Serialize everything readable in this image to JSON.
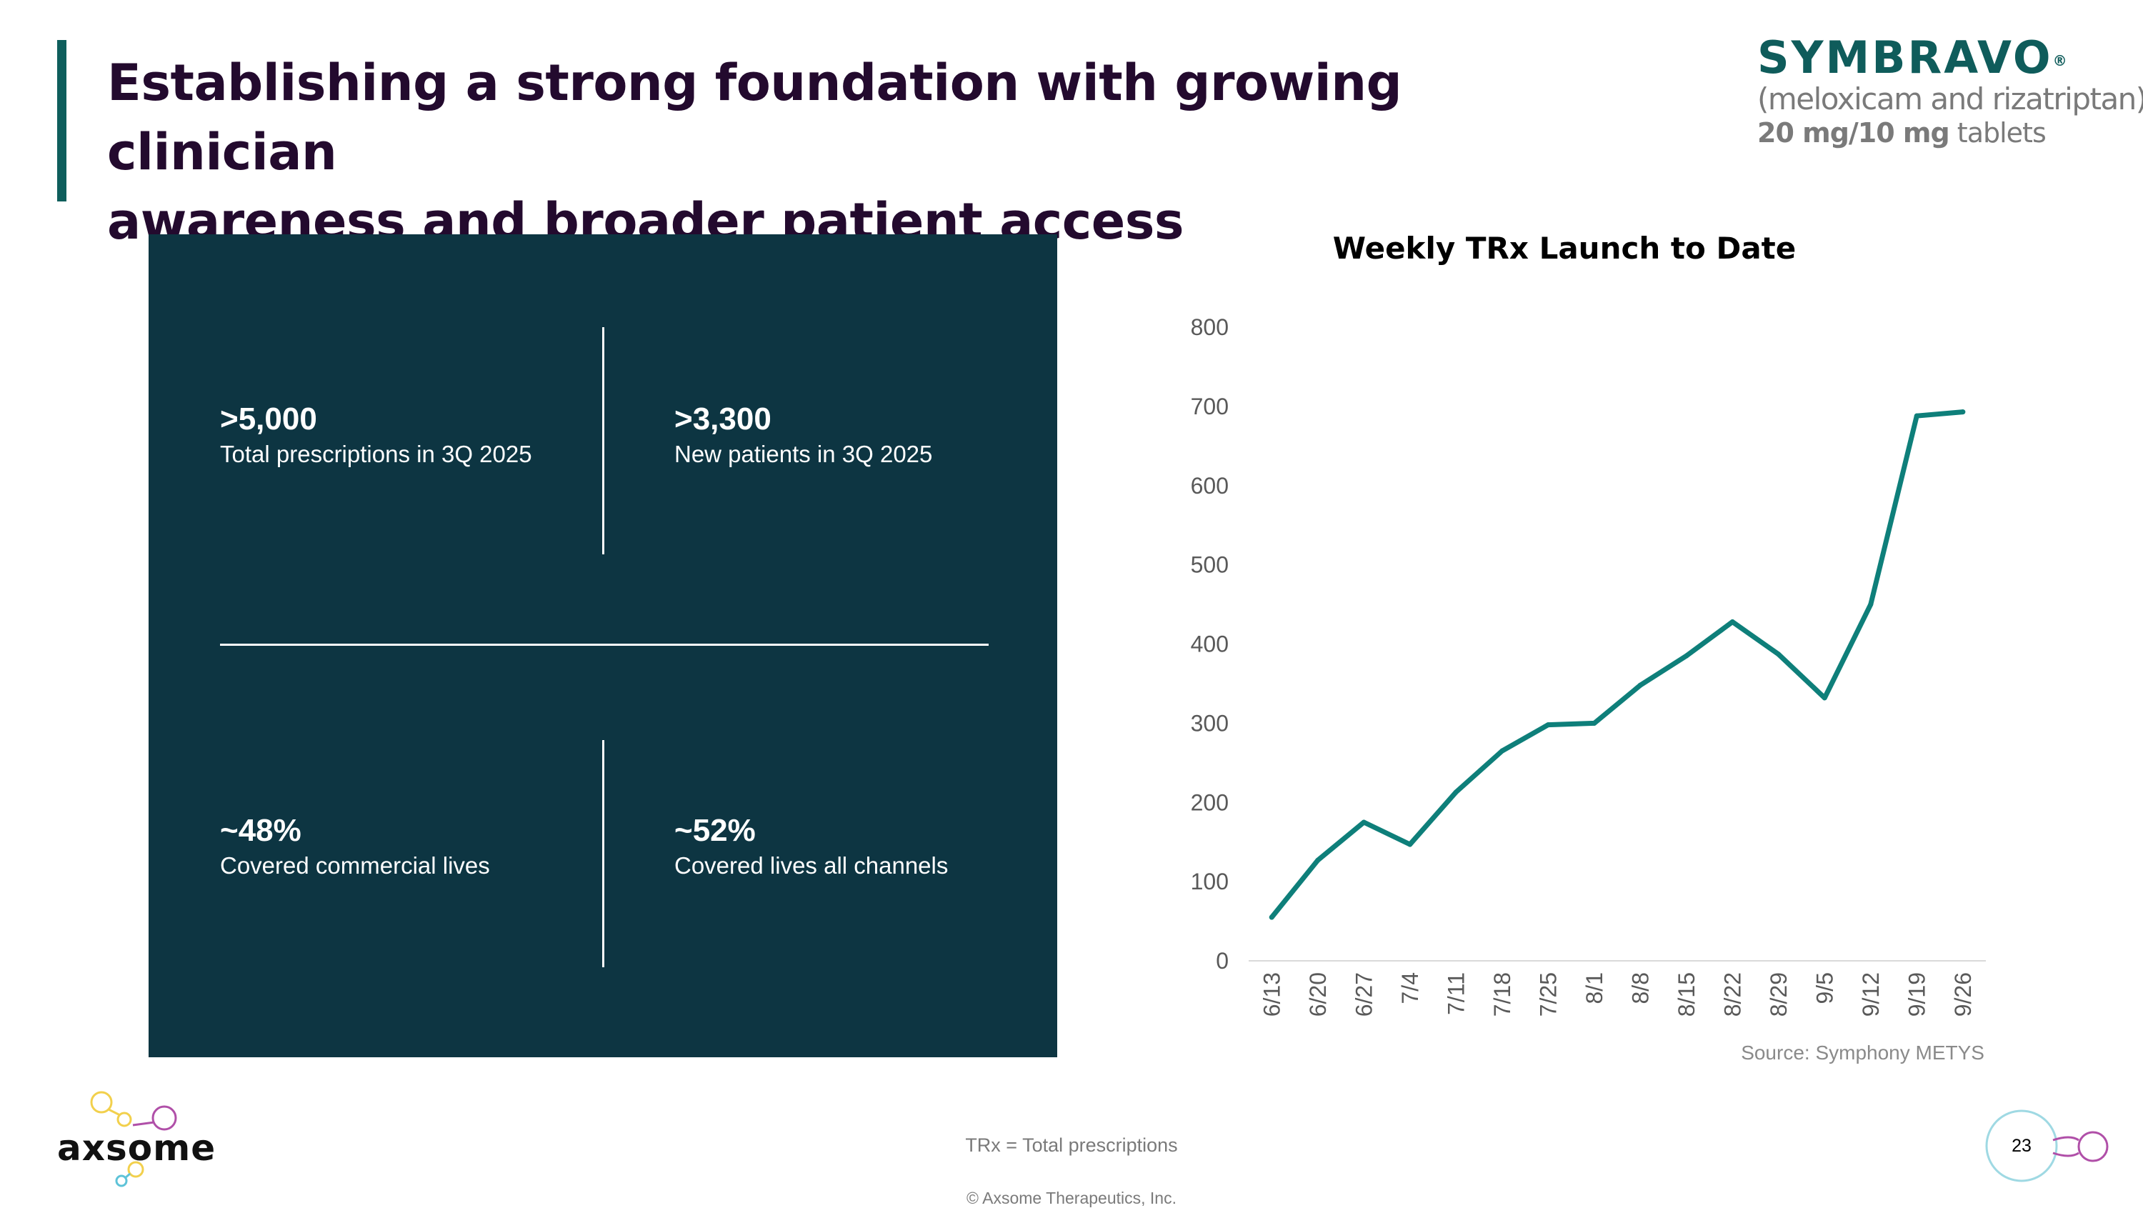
{
  "slide": {
    "title_line1": "Establishing a strong foundation with growing clinician",
    "title_line2": "awareness and broader patient access",
    "page_number": "23",
    "footnote": "TRx = Total prescriptions",
    "copyright": "© Axsome Therapeutics, Inc."
  },
  "brand": {
    "name": "SYMBRAVO",
    "registered_mark": "®",
    "generic": "(meloxicam and rizatriptan)",
    "dose_strength": "20 mg/10 mg",
    "dose_form": "tablets",
    "color": "#0f5c5b",
    "accent_color": "#4bbfae"
  },
  "company": {
    "logo_text": "axsome"
  },
  "metrics": [
    {
      "value": ">5,000",
      "label": "Total prescriptions in 3Q 2025"
    },
    {
      "value": ">3,300",
      "label": "New patients in 3Q 2025"
    },
    {
      "value": "~48%",
      "label": "Covered commercial lives"
    },
    {
      "value": "~52%",
      "label": "Covered lives all channels"
    }
  ],
  "colors": {
    "panel_bg": "#0d3542",
    "title_text": "#230a2e",
    "accent_bar": "#0e5e5c",
    "line": "#0e7f7a"
  },
  "chart_data": {
    "type": "line",
    "title": "Weekly TRx Launch to Date",
    "xlabel": "",
    "ylabel": "",
    "categories": [
      "6/13",
      "6/20",
      "6/27",
      "7/4",
      "7/11",
      "7/18",
      "7/25",
      "8/1",
      "8/8",
      "8/15",
      "8/22",
      "8/29",
      "9/5",
      "9/12",
      "9/19",
      "9/26"
    ],
    "series": [
      {
        "values": [
          55,
          127,
          175,
          147,
          213,
          265,
          298,
          300,
          348,
          385,
          428,
          387,
          332,
          450,
          688,
          693
        ]
      }
    ],
    "ylim": [
      0,
      800
    ],
    "yticks": [
      0,
      100,
      200,
      300,
      400,
      500,
      600,
      700,
      800
    ],
    "grid": false,
    "legend": "none",
    "source": "Source: Symphony METYS"
  }
}
